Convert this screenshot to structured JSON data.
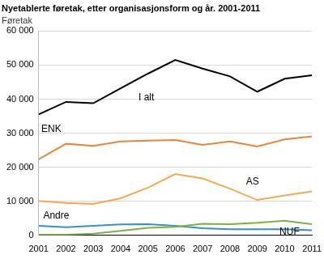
{
  "chart_data": {
    "type": "line",
    "title": "Nyetablerte føretak, etter organisasjonsform og år. 2001-2011",
    "y_label": "Føretak",
    "categories": [
      "2001",
      "2002",
      "2003",
      "2004",
      "2005",
      "2006",
      "2007",
      "2008",
      "2009",
      "2010",
      "2011"
    ],
    "series": [
      {
        "name": "I alt",
        "color": "#000000",
        "values": [
          35500,
          39200,
          38800,
          43200,
          47500,
          51500,
          49000,
          46700,
          42200,
          46000,
          47000
        ]
      },
      {
        "name": "ENK",
        "color": "#e8863a",
        "values": [
          22300,
          26900,
          26300,
          27600,
          27800,
          28000,
          26600,
          27600,
          26100,
          28200,
          29100
        ]
      },
      {
        "name": "AS",
        "color": "#f4a951",
        "values": [
          10100,
          9500,
          9200,
          10900,
          14000,
          18000,
          16700,
          13700,
          10400,
          11700,
          12900
        ]
      },
      {
        "name": "NUF",
        "color": "#7fb13d",
        "values": [
          200,
          200,
          500,
          1300,
          2200,
          2500,
          3400,
          3300,
          3700,
          4300,
          3300
        ]
      },
      {
        "name": "Andre",
        "color": "#3a8fc5",
        "values": [
          2800,
          2400,
          2800,
          3200,
          3300,
          2800,
          2100,
          1800,
          1800,
          1800,
          1500
        ]
      }
    ],
    "ylim": [
      0,
      60000
    ],
    "yticks": [
      0,
      {
        "value": 10000,
        "label": "10 000"
      },
      {
        "value": 20000,
        "label": "20 000"
      },
      {
        "value": 30000,
        "label": "30 000"
      },
      {
        "value": 40000,
        "label": "40 000"
      },
      {
        "value": 50000,
        "label": "50 000"
      },
      {
        "value": 60000,
        "label": "60 000"
      }
    ],
    "grid": true
  }
}
